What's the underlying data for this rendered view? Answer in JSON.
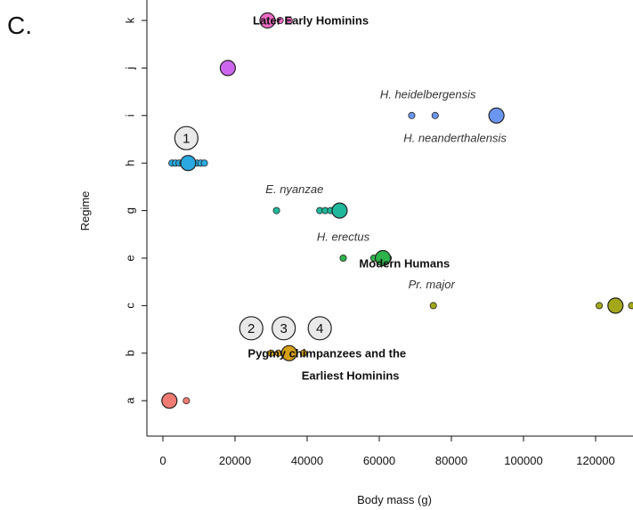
{
  "chart_data": {
    "type": "scatter",
    "panel_label": "C.",
    "xlabel": "Body mass (g)",
    "ylabel": "Regime",
    "xlim": [
      -5000,
      130000
    ],
    "x_ticks": [
      0,
      20000,
      40000,
      60000,
      80000,
      100000,
      120000
    ],
    "x_tick_labels": [
      "0",
      "20000",
      "40000",
      "60000",
      "80000",
      "100000",
      "120000"
    ],
    "y_categories": [
      "a",
      "b",
      "c",
      "e",
      "g",
      "h",
      "i",
      "j",
      "k"
    ],
    "grid": false,
    "series": [
      {
        "regime": "a",
        "color": "#F07B72",
        "points": [
          1000,
          1400,
          1800,
          2200,
          2600,
          3000,
          6500
        ],
        "mean": 1800
      },
      {
        "regime": "b",
        "color": "#D4A017",
        "points": [
          30000,
          32000,
          34500,
          36500,
          39000
        ],
        "mean": 35000
      },
      {
        "regime": "c",
        "color": "#A3A81A",
        "points": [
          75000,
          121000,
          125500,
          130000
        ],
        "mean": 125500
      },
      {
        "regime": "e",
        "color": "#2DB34A",
        "points": [
          50000,
          58500,
          61000,
          62500
        ],
        "mean": 61000
      },
      {
        "regime": "g",
        "color": "#1FB89C",
        "points": [
          31500,
          43500,
          45000,
          46500,
          49000
        ],
        "mean": 49000
      },
      {
        "regime": "h",
        "color": "#29A9DF",
        "points": [
          2500,
          3500,
          4500,
          5500,
          6500,
          7500,
          8500,
          9500,
          10500,
          11500
        ],
        "mean": 7000
      },
      {
        "regime": "i",
        "color": "#6A96F0",
        "points": [
          69000,
          75500
        ],
        "mean": 92500
      },
      {
        "regime": "j",
        "color": "#CC66EE",
        "points": [
          17500,
          18500
        ],
        "mean": 18000
      },
      {
        "regime": "k",
        "color": "#F06AC4",
        "points": [
          28000,
          30000,
          32500,
          35000
        ],
        "mean": 29000
      }
    ],
    "annotations": [
      {
        "text": "Later Early Hominins",
        "x": 41000,
        "y": "k",
        "style": "bold"
      },
      {
        "text": "H. heidelbergensis",
        "x": 73500,
        "y": "i",
        "offset": "above",
        "style": "italic"
      },
      {
        "text": "H. neanderthalensis",
        "x": 81000,
        "y": "i",
        "offset": "below",
        "style": "italic"
      },
      {
        "text": "E. nyanzae",
        "x": 36500,
        "y": "g",
        "offset": "above",
        "style": "italic"
      },
      {
        "text": "H. erectus",
        "x": 50000,
        "y": "e",
        "offset": "above",
        "style": "italic"
      },
      {
        "text": "Modern Humans",
        "x": 67000,
        "y": "e",
        "offset": "below-right",
        "style": "bold"
      },
      {
        "text": "Pr. major",
        "x": 74500,
        "y": "c",
        "offset": "above",
        "style": "italic"
      },
      {
        "text": "Pygmy chimpanzees and the",
        "x": 45500,
        "y": "b",
        "style": "bold"
      },
      {
        "text": "Earliest Hominins",
        "x": 52000,
        "y": "b",
        "offset": "below",
        "style": "bold"
      }
    ],
    "badges": [
      {
        "label": "1",
        "x": 6500,
        "y": "h"
      },
      {
        "label": "2",
        "x": 24500,
        "y": "b"
      },
      {
        "label": "3",
        "x": 33500,
        "y": "b"
      },
      {
        "label": "4",
        "x": 43500,
        "y": "b"
      }
    ]
  }
}
